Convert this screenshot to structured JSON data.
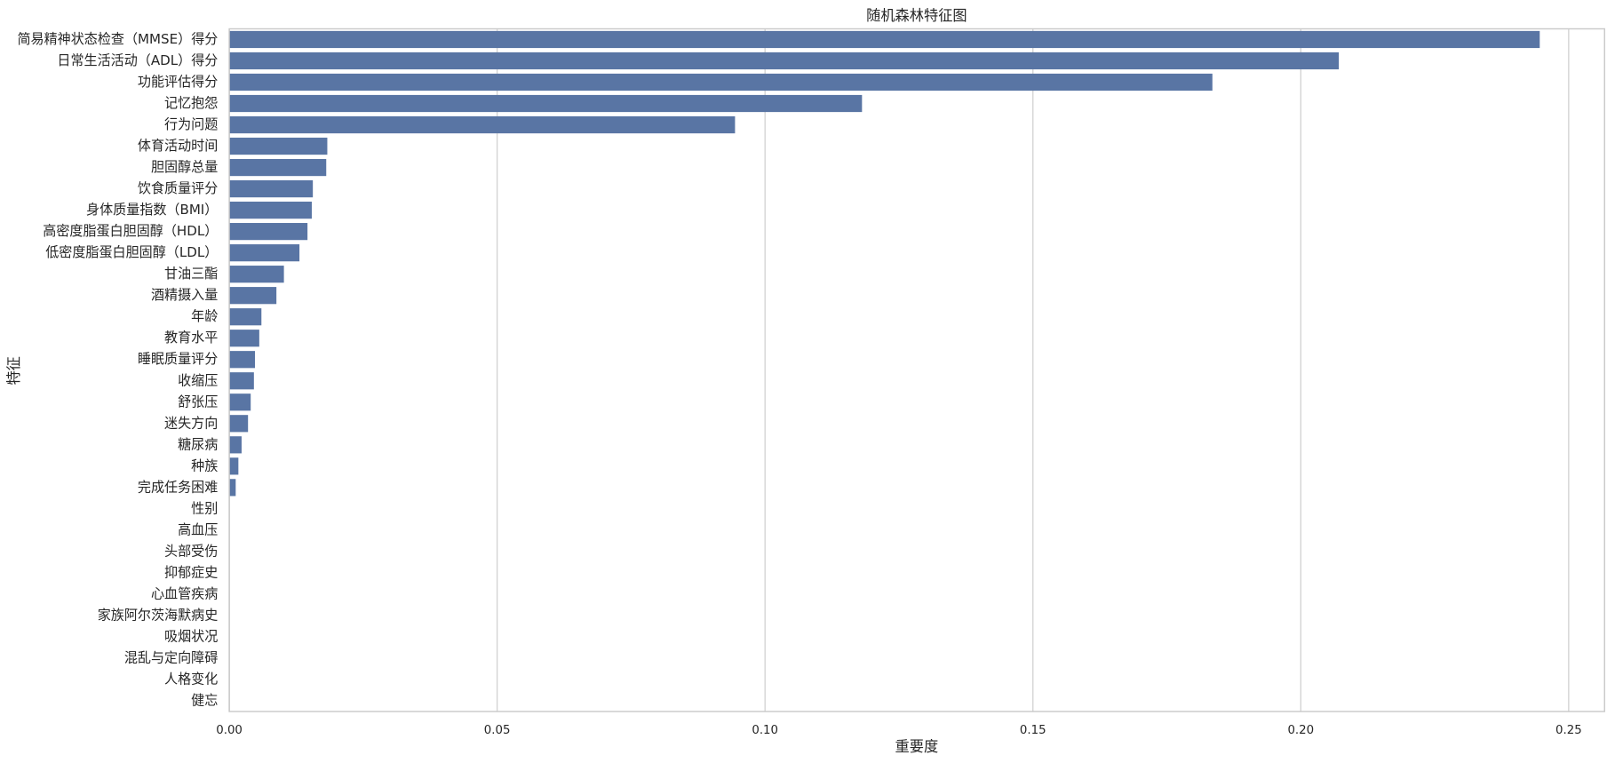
{
  "chart_data": {
    "type": "barh",
    "title": "随机森林特征图",
    "xlabel": "重要度",
    "ylabel": "特征",
    "categories": [
      "简易精神状态检查（MMSE）得分",
      "日常生活活动（ADL）得分",
      "功能评估得分",
      "记忆抱怨",
      "行为问题",
      "体育活动时间",
      "胆固醇总量",
      "饮食质量评分",
      "身体质量指数（BMI）",
      "高密度脂蛋白胆固醇（HDL）",
      "低密度脂蛋白胆固醇（LDL）",
      "甘油三酯",
      "酒精摄入量",
      "年龄",
      "教育水平",
      "睡眠质量评分",
      "收缩压",
      "舒张压",
      "迷失方向",
      "糖尿病",
      "种族",
      "完成任务困难",
      "性别",
      "高血压",
      "头部受伤",
      "抑郁症史",
      "心血管疾病",
      "家族阿尔茨海默病史",
      "吸烟状况",
      "混乱与定向障碍",
      "人格变化",
      "健忘"
    ],
    "values": [
      0.2446,
      0.2071,
      0.1835,
      0.1181,
      0.0944,
      0.0183,
      0.0181,
      0.0156,
      0.0154,
      0.0146,
      0.0131,
      0.0102,
      0.0088,
      0.006,
      0.0056,
      0.0048,
      0.0046,
      0.004,
      0.0035,
      0.0023,
      0.0017,
      0.0012,
      0,
      0,
      0,
      0,
      0,
      0,
      0,
      0,
      0,
      0
    ],
    "color": "#5975a4",
    "xlim": [
      0,
      0.2567
    ],
    "xticks": [
      {
        "value": 0,
        "label": "0.00"
      },
      {
        "value": 0.05,
        "label": "0.05"
      },
      {
        "value": 0.1,
        "label": "0.10"
      },
      {
        "value": 0.15,
        "label": "0.15"
      },
      {
        "value": 0.2,
        "label": "0.20"
      },
      {
        "value": 0.25,
        "label": "0.25"
      }
    ],
    "grid": true
  }
}
